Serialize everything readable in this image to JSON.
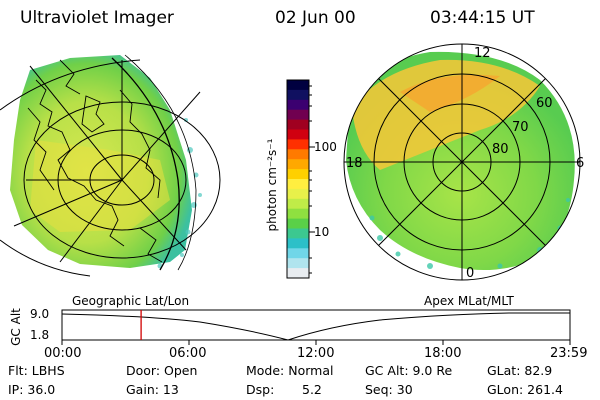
{
  "header": {
    "instrument": "Ultraviolet Imager",
    "date": "02 Jun 00",
    "time": "03:44:15 UT"
  },
  "colorbar": {
    "unit_label": "photon cm⁻²s⁻¹",
    "ticks": [
      "100",
      "10"
    ],
    "colors": [
      "#000040",
      "#101060",
      "#3b0070",
      "#700050",
      "#a00020",
      "#d00010",
      "#ff3000",
      "#ff7a00",
      "#ffa800",
      "#ffd000",
      "#ffee40",
      "#e8f04a",
      "#c0ec48",
      "#8fe040",
      "#5ad048",
      "#3cc890",
      "#2cc0c8",
      "#70d6e8",
      "#b0e4ee",
      "#e8ecf0"
    ]
  },
  "left_panel": {
    "label": "Geographic Lat/Lon"
  },
  "right_panel": {
    "label": "Apex MLat/MLT",
    "mlt_labels": {
      "top": "12",
      "left": "18",
      "right": "6",
      "bottom": "0"
    },
    "lat_labels": [
      "60",
      "70",
      "80"
    ]
  },
  "timeline": {
    "axis_label": "GC Alt",
    "y_ticks": [
      "9.0",
      "1.8"
    ],
    "x_ticks": [
      "00:00",
      "06:00",
      "12:00",
      "18:00",
      "23:59"
    ],
    "current_time_fraction": 0.1557
  },
  "status": {
    "flt": "Flt: LBHS",
    "ip": "IP: 36.0",
    "door": "Door: Open",
    "gain": "Gain: 13",
    "mode": "Mode: Normal",
    "dsp_label": "Dsp:",
    "dsp_value": "5.2",
    "gc_alt": "GC Alt: 9.0 Re",
    "seq": "Seq: 30",
    "glat": "GLat:  82.9",
    "glon": "GLon: 261.4"
  }
}
